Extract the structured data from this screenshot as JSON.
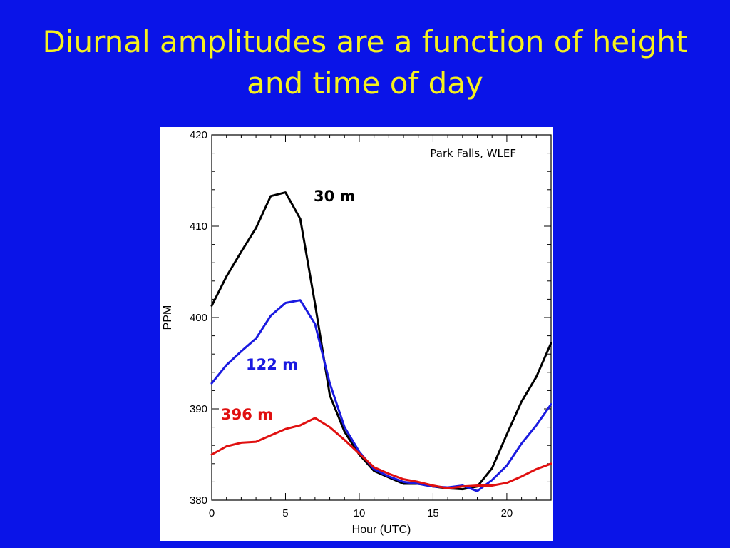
{
  "slide": {
    "title": "Diurnal amplitudes are a function of height and time of day",
    "background_color": "#0a14e8",
    "title_color": "#f6f21c"
  },
  "chart_data": {
    "type": "line",
    "title": "",
    "xlabel": "Hour (UTC)",
    "ylabel": "PPM",
    "xlim": [
      0,
      23
    ],
    "ylim": [
      380,
      420
    ],
    "xticks": [
      0,
      5,
      10,
      15,
      20
    ],
    "yticks": [
      380,
      390,
      400,
      410,
      420
    ],
    "annotation": "Park Falls, WLEF",
    "legend": "inline-labels",
    "series": [
      {
        "name": "30 m",
        "color": "#000000",
        "x": [
          0,
          1,
          2,
          3,
          4,
          5,
          6,
          7,
          8,
          9,
          10,
          11,
          12,
          13,
          14,
          15,
          16,
          17,
          18,
          19,
          20,
          21,
          22,
          23
        ],
        "values": [
          401.3,
          404.5,
          407.2,
          409.8,
          413.3,
          413.7,
          410.8,
          401.5,
          391.5,
          387.5,
          385.0,
          383.2,
          382.5,
          381.8,
          381.8,
          381.5,
          381.3,
          381.2,
          381.5,
          383.5,
          387.2,
          390.8,
          393.5,
          397.2
        ]
      },
      {
        "name": "122 m",
        "color": "#1a1ae0",
        "x": [
          0,
          1,
          2,
          3,
          4,
          5,
          6,
          7,
          8,
          9,
          10,
          11,
          12,
          13,
          14,
          15,
          16,
          17,
          18,
          19,
          20,
          21,
          22,
          23
        ],
        "values": [
          392.8,
          394.8,
          396.3,
          397.7,
          400.2,
          401.6,
          401.9,
          399.3,
          392.8,
          388.0,
          385.3,
          383.4,
          382.6,
          382.0,
          381.8,
          381.5,
          381.4,
          381.6,
          381.0,
          382.2,
          383.8,
          386.2,
          388.2,
          390.5
        ]
      },
      {
        "name": "396 m",
        "color": "#e01010",
        "x": [
          0,
          1,
          2,
          3,
          4,
          5,
          6,
          7,
          8,
          9,
          10,
          11,
          12,
          13,
          14,
          15,
          16,
          17,
          18,
          19,
          20,
          21,
          22,
          23
        ],
        "values": [
          385.0,
          385.9,
          386.3,
          386.4,
          387.1,
          387.8,
          388.2,
          389.0,
          388.0,
          386.6,
          385.1,
          383.6,
          382.9,
          382.3,
          382.0,
          381.6,
          381.3,
          381.5,
          381.6,
          381.6,
          381.9,
          382.6,
          383.4,
          384.0
        ]
      }
    ]
  }
}
